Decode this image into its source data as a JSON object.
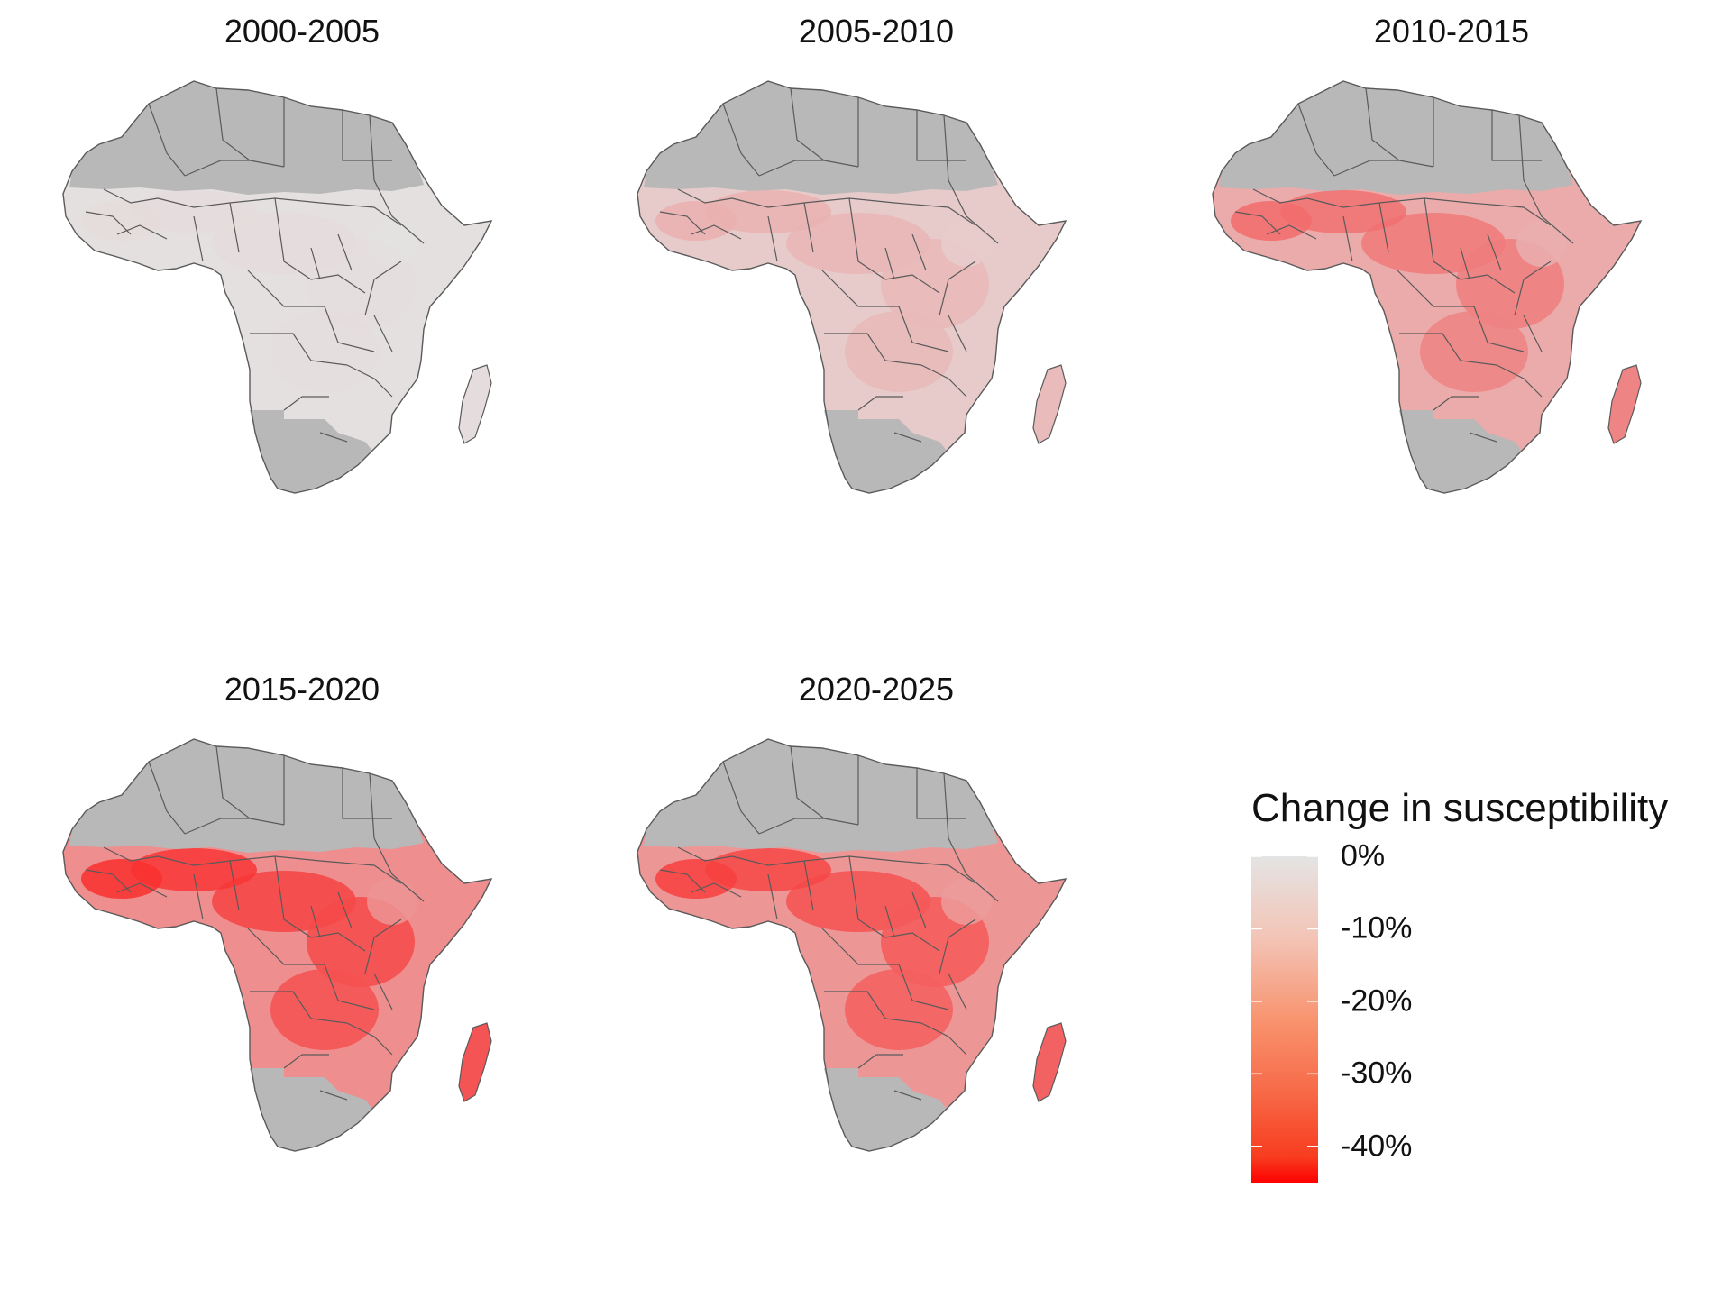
{
  "panels": [
    {
      "title": "2000-2005",
      "level": 0.02
    },
    {
      "title": "2005-2010",
      "level": 0.12
    },
    {
      "title": "2010-2015",
      "level": 0.28
    },
    {
      "title": "2015-2020",
      "level": 0.42
    },
    {
      "title": "2020-2025",
      "level": 0.38
    }
  ],
  "legend": {
    "title": "Change in susceptibility",
    "labels": [
      "0%",
      "-10%",
      "-20%",
      "-30%",
      "-40%"
    ],
    "values": [
      0,
      -10,
      -20,
      -30,
      -40
    ],
    "range": [
      -45,
      0
    ]
  },
  "colors": {
    "no_data": "#b8b8b8",
    "zero": "#e4e4e4",
    "min": "#fe0000",
    "border": "#5a5a5a"
  }
}
